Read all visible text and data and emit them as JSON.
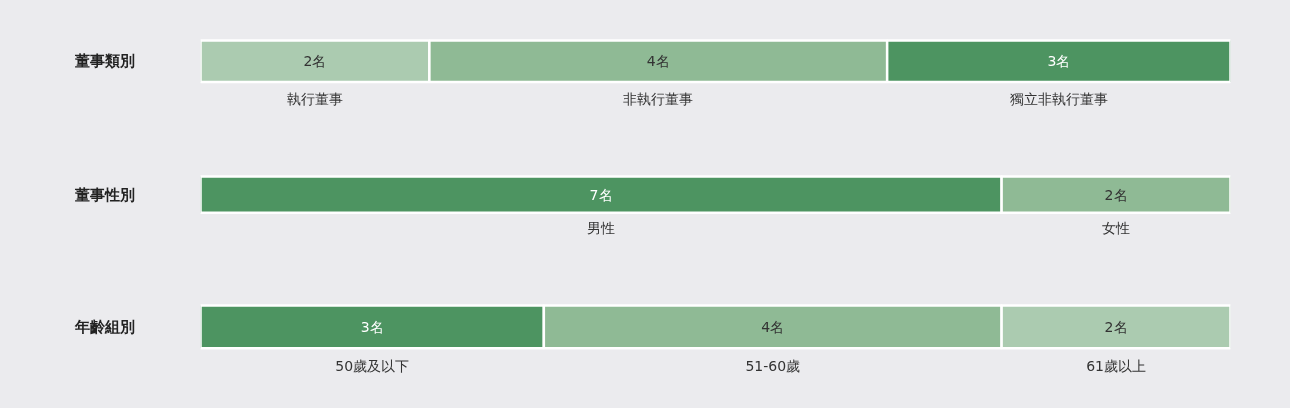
{
  "chart_data": [
    {
      "type": "bar",
      "orientation": "horizontal",
      "stacked": true,
      "categories": [
        "董事類別"
      ],
      "series": [
        {
          "name": "執行董事",
          "color": "#abcbb0",
          "values": [
            2
          ],
          "value_labels": [
            "2名"
          ]
        },
        {
          "name": "非執行董事",
          "color": "#8fba95",
          "values": [
            4
          ],
          "value_labels": [
            "4名"
          ]
        },
        {
          "name": "獨立非執行董事",
          "color": "#4d9461",
          "values": [
            3
          ],
          "value_labels": [
            "3名"
          ]
        }
      ]
    },
    {
      "type": "bar",
      "orientation": "horizontal",
      "stacked": true,
      "categories": [
        "董事性別"
      ],
      "series": [
        {
          "name": "男性",
          "color": "#4d9461",
          "values": [
            7
          ],
          "value_labels": [
            "7名"
          ]
        },
        {
          "name": "女性",
          "color": "#8fba95",
          "values": [
            2
          ],
          "value_labels": [
            "2名"
          ]
        }
      ]
    },
    {
      "type": "bar",
      "orientation": "horizontal",
      "stacked": true,
      "categories": [
        "年齡組別"
      ],
      "series": [
        {
          "name": "50歲及以下",
          "color": "#4d9461",
          "values": [
            3
          ],
          "value_labels": [
            "3名"
          ]
        },
        {
          "name": "51-60歲",
          "color": "#8fba95",
          "values": [
            4
          ],
          "value_labels": [
            "4名"
          ]
        },
        {
          "name": "61歲以上",
          "color": "#abcbb0",
          "values": [
            2
          ],
          "value_labels": [
            "2名"
          ]
        }
      ]
    }
  ]
}
